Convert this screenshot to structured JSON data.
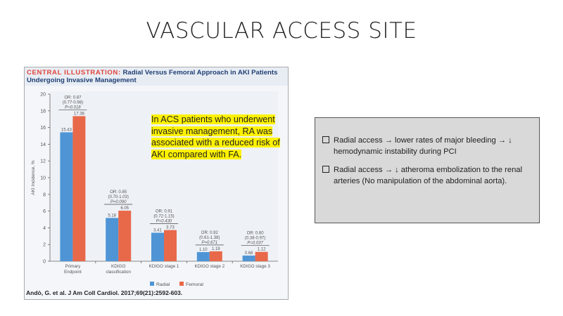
{
  "slide_title": "VASCULAR ACCESS SITE",
  "figure": {
    "header_lead": "CENTRAL ILLUSTRATION:",
    "header_rest": "Radial Versus Femoral Approach in AKI Patients Undergoing Invasive Management",
    "callout": "In ACS patients who underwent invasive management, RA was associated with a reduced risk of AKI compared with FA.",
    "citation": "Andò, G. et al. J Am Coll Cardiol. 2017;69(21):2592-603."
  },
  "chart_data": {
    "type": "bar",
    "ylabel": "AKI Incidence, %",
    "ylim": [
      0,
      20
    ],
    "yticks": [
      0,
      2,
      4,
      6,
      8,
      10,
      12,
      14,
      16,
      18,
      20
    ],
    "categories": [
      "Primary Endpoint",
      "KDIGO classification",
      "KDIGO stage 1",
      "KDIGO stage 2",
      "KDIGO stage 3"
    ],
    "series": [
      {
        "name": "Radial",
        "color": "#4f95d6",
        "values": [
          15.43,
          5.18,
          3.41,
          1.1,
          0.68
        ]
      },
      {
        "name": "Femoral",
        "color": "#e8694a",
        "values": [
          17.36,
          6.05,
          3.73,
          1.19,
          1.12
        ]
      }
    ],
    "annotations": [
      [
        "OR: 0.87",
        "(0.77-0.98)",
        "P=0.018"
      ],
      [
        "OR: 0.85",
        "(0.70-1.03)",
        "P=0.090"
      ],
      [
        "OR: 0.91",
        "(0.72-1.15)",
        "P=0.430"
      ],
      [
        "OR: 0.92",
        "(0.61-1.38)",
        "P=0.671"
      ],
      [
        "OR: 0.60",
        "(0.38-0.97)",
        "P=0.037"
      ]
    ],
    "legend_position": "bottom"
  },
  "notes": [
    "Radial access → lower rates of major bleeding → ↓ hemodynamic instability during PCI",
    "Radial access → ↓ atheroma embolization to the renal arteries (No manipulation of the abdominal aorta)."
  ]
}
